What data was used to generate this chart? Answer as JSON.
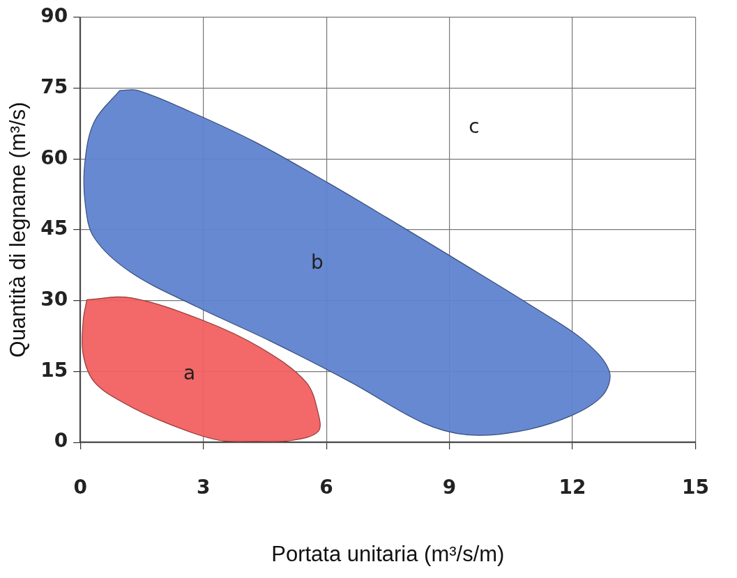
{
  "chart_data": {
    "type": "area",
    "xlabel": "Portata unitaria (m³/s/m)",
    "ylabel": "Quantità di legname (m³/s)",
    "xlim": [
      0,
      15
    ],
    "xticks": [
      0,
      3,
      6,
      9,
      12,
      15
    ],
    "ylim": [
      0,
      90
    ],
    "yticks": [
      0,
      15,
      30,
      45,
      60,
      75,
      90
    ],
    "grid": true,
    "marker": "none",
    "series": [
      {
        "name": "a",
        "color": "#f26060",
        "x": [
          0.16,
          1.23,
          3.0,
          4.4,
          5.5,
          5.8,
          5.8,
          5.15,
          4.3,
          3.4,
          2.1,
          1.05,
          0.34,
          0.07,
          0.07,
          0.16
        ],
        "values": [
          30.2,
          30.6,
          25.8,
          20,
          12.8,
          6.2,
          2.3,
          0.4,
          0.2,
          0.4,
          4.1,
          8.4,
          12.8,
          18.6,
          25.8,
          30.2
        ]
      },
      {
        "name": "b",
        "color": "#5f83cf",
        "x": [
          0.96,
          1.4,
          2.66,
          4.26,
          6.05,
          7.47,
          9.26,
          11.04,
          12.29,
          12.9,
          12.73,
          11.93,
          10.68,
          9.43,
          8.36,
          6.58,
          4.62,
          2.84,
          1.23,
          0.34,
          0.12,
          0.11,
          0.34,
          0.96
        ],
        "values": [
          74.5,
          74.5,
          70.1,
          63.6,
          54.9,
          47.6,
          38.2,
          28.7,
          21.5,
          15,
          9.9,
          5.5,
          2.3,
          1.6,
          4.1,
          12.8,
          21.5,
          28.7,
          36,
          43.3,
          50.5,
          59.2,
          67.9,
          74.5
        ]
      }
    ],
    "annotations": [
      "c"
    ]
  }
}
